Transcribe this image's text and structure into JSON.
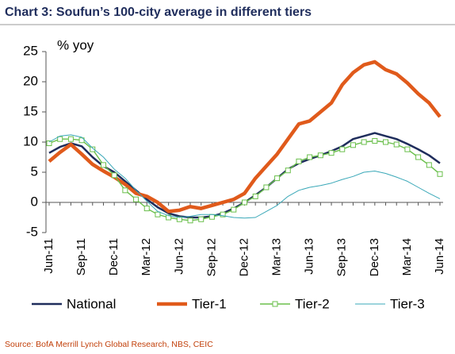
{
  "chart_data": {
    "type": "line",
    "title": "Chart 3: Soufun’s 100-city average in different tiers",
    "y_label": "% yoy",
    "source": "Source: BofA Merrill Lynch Global Research, NBS, CEIC",
    "categories": [
      "Jun-11",
      null,
      null,
      "Sep-11",
      null,
      null,
      "Dec-11",
      null,
      null,
      "Mar-12",
      null,
      null,
      "Jun-12",
      null,
      null,
      "Sep-12",
      null,
      null,
      "Dec-12",
      null,
      null,
      "Mar-13",
      null,
      null,
      "Jun-13",
      null,
      null,
      "Sep-13",
      null,
      null,
      "Dec-13",
      null,
      null,
      "Mar-14",
      null,
      null,
      "Jun-14"
    ],
    "ylim": [
      -5,
      25
    ],
    "yticks": [
      -5,
      0,
      5,
      10,
      15,
      20,
      25
    ],
    "legend": "bottom",
    "series": [
      {
        "name": "National",
        "color": "#1f2d5c",
        "values": [
          8.2,
          9.2,
          9.8,
          9.3,
          7.5,
          6,
          5,
          3.5,
          2,
          0.5,
          -0.8,
          -1.8,
          -2.3,
          -2.5,
          -2.5,
          -2.3,
          -1.8,
          -1,
          0,
          1.2,
          2.5,
          4,
          5.5,
          6.5,
          7.2,
          7.8,
          8.5,
          9.3,
          10.5,
          11,
          11.5,
          11,
          10.5,
          9.7,
          8.8,
          7.8,
          6.5
        ]
      },
      {
        "name": "Tier-1",
        "color": "#e05a1b",
        "values": [
          6.8,
          8.3,
          9.6,
          8,
          6.3,
          5.2,
          4.2,
          3,
          1.5,
          1,
          0,
          -1.5,
          -1.3,
          -0.7,
          -1,
          -0.5,
          0,
          0.5,
          1.5,
          4,
          6,
          8,
          10.5,
          13,
          13.5,
          15,
          16.5,
          19.5,
          21.5,
          22.8,
          23.3,
          22,
          21.3,
          19.8,
          18,
          16.5,
          14.2
        ]
      },
      {
        "name": "Tier-2",
        "color": "#6abf4b",
        "marker": "square",
        "values": [
          9.8,
          10.5,
          10.5,
          10.3,
          8.8,
          6.2,
          4.5,
          2,
          0.5,
          -1,
          -2,
          -2.5,
          -2.8,
          -3,
          -2.8,
          -2.4,
          -2,
          -1.2,
          0,
          1,
          2.5,
          4,
          5.3,
          6.8,
          7.5,
          7.8,
          8.2,
          8.8,
          9.5,
          10,
          10.2,
          10,
          9.6,
          8.8,
          7.5,
          6.2,
          4.7
        ]
      },
      {
        "name": "Tier-3",
        "color": "#3aa8b8",
        "values": [
          10,
          11,
          11.2,
          10.8,
          9,
          7.5,
          5.5,
          4,
          2,
          0.2,
          -1.5,
          -2.2,
          -2.5,
          -2.3,
          -2,
          -2,
          -2.2,
          -2.5,
          -2.6,
          -2.5,
          -1.5,
          -0.5,
          1,
          2,
          2.5,
          2.8,
          3.2,
          3.8,
          4.3,
          5,
          5.2,
          4.8,
          4.2,
          3.5,
          2.5,
          1.5,
          0.6
        ]
      }
    ]
  }
}
